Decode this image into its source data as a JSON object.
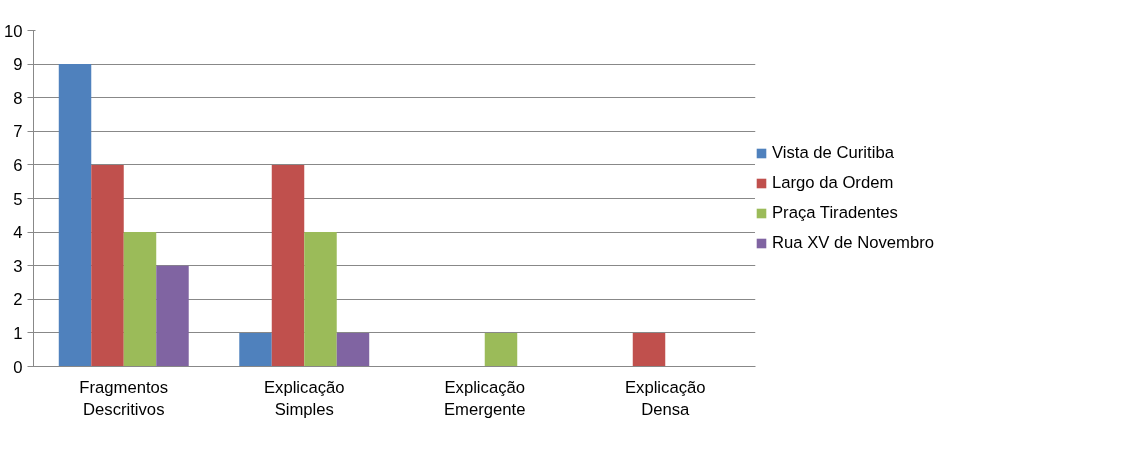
{
  "chart_data": {
    "type": "bar",
    "categories": [
      "Fragmentos Descritivos",
      "Explicação Simples",
      "Explicação Emergente",
      "Explicação Densa"
    ],
    "series": [
      {
        "name": "Vista de Curitiba",
        "color": "#4f81bd",
        "values": [
          9,
          1,
          0,
          0
        ]
      },
      {
        "name": "Largo da Ordem",
        "color": "#c0504d",
        "values": [
          6,
          6,
          0,
          1
        ]
      },
      {
        "name": "Praça Tiradentes",
        "color": "#9bbb59",
        "values": [
          4,
          4,
          1,
          0
        ]
      },
      {
        "name": "Rua XV de Novembro",
        "color": "#8064a2",
        "values": [
          3,
          1,
          0,
          0
        ]
      }
    ],
    "ylim": [
      0,
      10
    ],
    "yticks": [
      0,
      1,
      2,
      3,
      4,
      5,
      6,
      7,
      8,
      9,
      10
    ],
    "grid": "y",
    "legend": "right"
  }
}
